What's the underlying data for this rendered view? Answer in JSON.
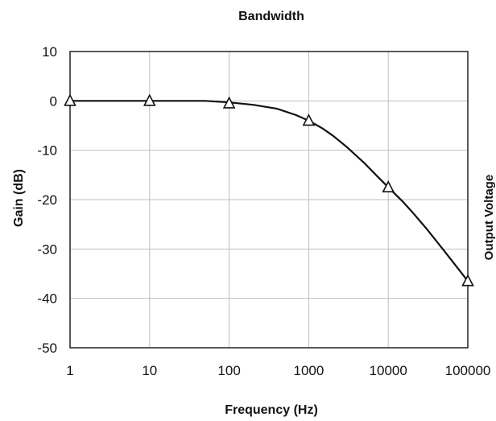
{
  "chart_data": {
    "type": "line",
    "title": "Bandwidth",
    "xlabel": "Frequency (Hz)",
    "ylabel": "Gain (dB)",
    "secondary_ylabel": "Output Voltage",
    "xscale": "log",
    "xlim": [
      1,
      100000
    ],
    "ylim": [
      -50,
      10
    ],
    "x_tick_labels": [
      "1",
      "10",
      "100",
      "1000",
      "10000",
      "100000"
    ],
    "y_tick_labels": [
      "10",
      "0",
      "-10",
      "-20",
      "-30",
      "-40",
      "-50"
    ],
    "x_ticks": [
      1,
      10,
      100,
      1000,
      10000,
      100000
    ],
    "y_ticks": [
      10,
      0,
      -10,
      -20,
      -30,
      -40,
      -50
    ],
    "grid": true,
    "series": [
      {
        "marker": "triangle-open",
        "color": "#111111",
        "x": [
          1,
          10,
          100,
          1000,
          10000,
          100000
        ],
        "y": [
          0,
          0,
          -0.5,
          -4,
          -17.5,
          -36.5
        ]
      }
    ],
    "curve": {
      "x": [
        1,
        10,
        50,
        100,
        200,
        400,
        700,
        1000,
        1500,
        2000,
        3000,
        5000,
        7000,
        10000,
        15000,
        20000,
        30000,
        50000,
        70000,
        100000
      ],
      "y": [
        0,
        0,
        0,
        -0.3,
        -0.8,
        -1.6,
        -2.9,
        -4,
        -5.6,
        -7,
        -9.3,
        -12.6,
        -15,
        -17.5,
        -20.3,
        -22.5,
        -25.8,
        -30.3,
        -33.3,
        -36.5
      ]
    },
    "colors": {
      "line": "#111111",
      "grid": "#bfbfbf",
      "frame": "#222222",
      "marker_fill": "#ffffff"
    }
  }
}
